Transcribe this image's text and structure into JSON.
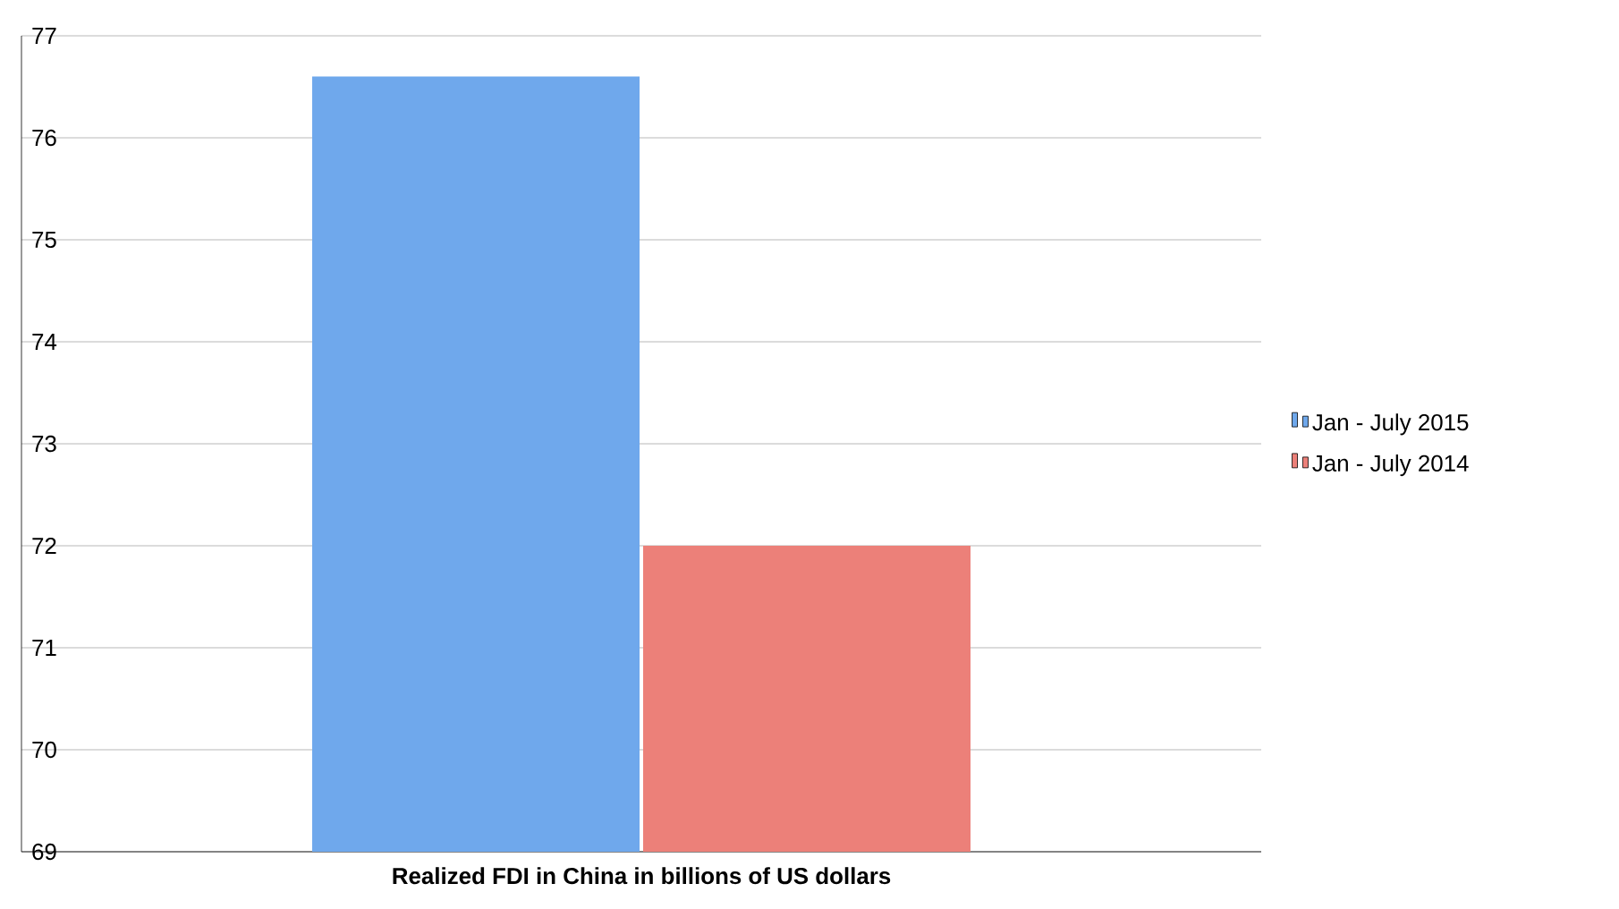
{
  "chart_data": {
    "type": "bar",
    "xlabel": "Realized FDI in China in billions of US dollars",
    "categories": [
      null
    ],
    "series": [
      {
        "name": "Jan - July 2015",
        "color": "#6fa8ec",
        "values": [
          76.6
        ]
      },
      {
        "name": "Jan - July 2014",
        "color": "#ec8079",
        "values": [
          72.0
        ]
      }
    ],
    "ylim": [
      69,
      77
    ],
    "yticks": [
      69,
      70,
      71,
      72,
      73,
      74,
      75,
      76,
      77
    ],
    "grid": "y",
    "legend": "right"
  }
}
